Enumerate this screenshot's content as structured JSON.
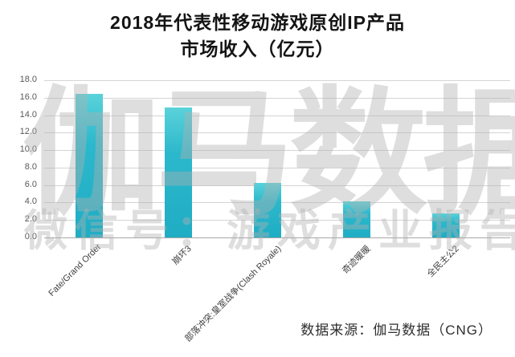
{
  "title": {
    "line1": "2018年代表性移动游戏原创IP产品",
    "line2": "市场收入（亿元）"
  },
  "watermark": {
    "line1": "伽马数据",
    "line2": "微信号：游戏产业报告"
  },
  "source_note": "数据来源：伽马数据（CNG）",
  "colors": {
    "bar_main": "#24b3c9",
    "bar_light_top": "#5ad2da",
    "grid": "#d4d4d4",
    "axis_text": "#595959",
    "watermark_gray": "#e3e3e3",
    "title_text": "#141414"
  },
  "chart_data": {
    "type": "bar",
    "title": "2018年代表性移动游戏原创IP产品市场收入（亿元）",
    "categories": [
      "Fate/Grand Order",
      "崩坏3",
      "部落冲突:皇室战争(Clash Royale)",
      "奇迹暖暖",
      "全民主公2"
    ],
    "values": [
      16.4,
      14.9,
      6.2,
      4.1,
      2.8
    ],
    "xlabel": "",
    "ylabel": "",
    "ylim": [
      0,
      18
    ],
    "ytick_step": 2,
    "ytick_labels": [
      "0.0",
      "2.0",
      "4.0",
      "6.0",
      "8.0",
      "10.0",
      "12.0",
      "14.0",
      "16.0",
      "18.0"
    ],
    "grid": "horizontal",
    "legend_position": "none",
    "bar_color_hex": "#24b3c9"
  }
}
